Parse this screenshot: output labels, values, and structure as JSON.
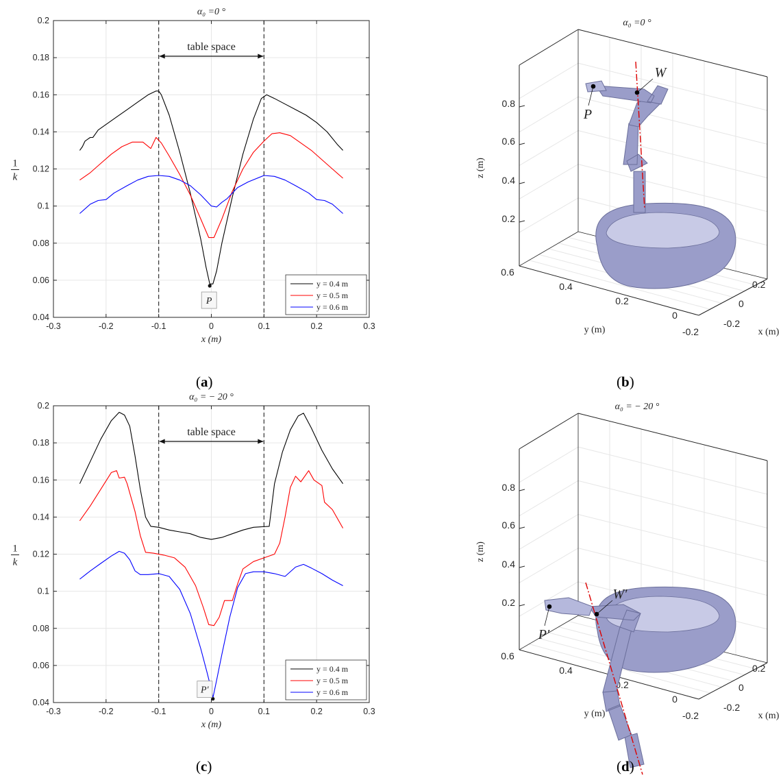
{
  "colors": {
    "black": "#000000",
    "red": "#ff0000",
    "blue": "#0000ff",
    "grid": "#e6e6e6",
    "robot": "#9a9dc9",
    "robot_dark": "#6a6e9a",
    "axis_line": "#dd0000"
  },
  "captions": {
    "a": "a",
    "b": "b",
    "c": "c",
    "d": "d"
  },
  "chart_data": [
    {
      "panel": "a",
      "type": "line",
      "title": "α₀ =0 °",
      "xlabel": "x (m)",
      "ylabel": "1/k",
      "ylabel_num": "1",
      "ylabel_den": "k",
      "xlim": [
        -0.3,
        0.3
      ],
      "ylim": [
        0.04,
        0.2
      ],
      "xticks": [
        "-0.3",
        "-0.2",
        "-0.1",
        "0",
        "0.1",
        "0.2",
        "0.3"
      ],
      "yticks": [
        "0.04",
        "0.06",
        "0.08",
        "0.1",
        "0.12",
        "0.14",
        "0.16",
        "0.18",
        "0.2"
      ],
      "grid": true,
      "legend": "bottom-right",
      "annotation": "table space",
      "dashed_x": [
        -0.1,
        0.1
      ],
      "point_label": "P",
      "point": [
        -0.003,
        0.057
      ],
      "series": [
        {
          "name": "y = 0.4 m",
          "color": "#000000",
          "points": [
            [
              -0.25,
              0.13
            ],
            [
              -0.245,
              0.132
            ],
            [
              -0.24,
              0.135
            ],
            [
              -0.235,
              0.136
            ],
            [
              -0.23,
              0.137
            ],
            [
              -0.225,
              0.137
            ],
            [
              -0.22,
              0.139
            ],
            [
              -0.215,
              0.141
            ],
            [
              -0.2,
              0.144
            ],
            [
              -0.18,
              0.148
            ],
            [
              -0.16,
              0.152
            ],
            [
              -0.14,
              0.156
            ],
            [
              -0.12,
              0.16
            ],
            [
              -0.105,
              0.162
            ],
            [
              -0.1,
              0.162
            ],
            [
              -0.095,
              0.16
            ],
            [
              -0.08,
              0.149
            ],
            [
              -0.06,
              0.129
            ],
            [
              -0.04,
              0.107
            ],
            [
              -0.02,
              0.082
            ],
            [
              -0.01,
              0.067
            ],
            [
              -0.003,
              0.058
            ],
            [
              0.003,
              0.058
            ],
            [
              0.01,
              0.065
            ],
            [
              0.02,
              0.08
            ],
            [
              0.04,
              0.105
            ],
            [
              0.06,
              0.128
            ],
            [
              0.08,
              0.147
            ],
            [
              0.095,
              0.158
            ],
            [
              0.105,
              0.16
            ],
            [
              0.12,
              0.158
            ],
            [
              0.14,
              0.155
            ],
            [
              0.16,
              0.152
            ],
            [
              0.18,
              0.149
            ],
            [
              0.2,
              0.145
            ],
            [
              0.22,
              0.14
            ],
            [
              0.24,
              0.133
            ],
            [
              0.25,
              0.13
            ]
          ]
        },
        {
          "name": "y = 0.5 m",
          "color": "#ff0000",
          "points": [
            [
              -0.25,
              0.114
            ],
            [
              -0.23,
              0.118
            ],
            [
              -0.21,
              0.123
            ],
            [
              -0.19,
              0.128
            ],
            [
              -0.17,
              0.132
            ],
            [
              -0.15,
              0.1345
            ],
            [
              -0.13,
              0.1345
            ],
            [
              -0.115,
              0.131
            ],
            [
              -0.105,
              0.137
            ],
            [
              -0.095,
              0.134
            ],
            [
              -0.08,
              0.127
            ],
            [
              -0.06,
              0.117
            ],
            [
              -0.04,
              0.106
            ],
            [
              -0.02,
              0.093
            ],
            [
              -0.005,
              0.083
            ],
            [
              0.005,
              0.083
            ],
            [
              0.02,
              0.093
            ],
            [
              0.04,
              0.108
            ],
            [
              0.06,
              0.12
            ],
            [
              0.08,
              0.129
            ],
            [
              0.1,
              0.135
            ],
            [
              0.115,
              0.139
            ],
            [
              0.13,
              0.1395
            ],
            [
              0.15,
              0.138
            ],
            [
              0.17,
              0.134
            ],
            [
              0.19,
              0.13
            ],
            [
              0.21,
              0.125
            ],
            [
              0.23,
              0.12
            ],
            [
              0.25,
              0.115
            ]
          ]
        },
        {
          "name": "y = 0.6 m",
          "color": "#0000ff",
          "points": [
            [
              -0.25,
              0.096
            ],
            [
              -0.23,
              0.101
            ],
            [
              -0.215,
              0.103
            ],
            [
              -0.2,
              0.1035
            ],
            [
              -0.185,
              0.107
            ],
            [
              -0.16,
              0.111
            ],
            [
              -0.14,
              0.114
            ],
            [
              -0.12,
              0.116
            ],
            [
              -0.1,
              0.1165
            ],
            [
              -0.08,
              0.116
            ],
            [
              -0.06,
              0.114
            ],
            [
              -0.04,
              0.111
            ],
            [
              -0.02,
              0.106
            ],
            [
              0.0,
              0.1
            ],
            [
              0.01,
              0.0995
            ],
            [
              0.02,
              0.102
            ],
            [
              0.03,
              0.104
            ],
            [
              0.05,
              0.11
            ],
            [
              0.07,
              0.113
            ],
            [
              0.1,
              0.1165
            ],
            [
              0.12,
              0.116
            ],
            [
              0.14,
              0.114
            ],
            [
              0.16,
              0.111
            ],
            [
              0.185,
              0.107
            ],
            [
              0.2,
              0.1035
            ],
            [
              0.215,
              0.103
            ],
            [
              0.23,
              0.101
            ],
            [
              0.25,
              0.096
            ]
          ]
        }
      ]
    },
    {
      "panel": "c",
      "type": "line",
      "title": "α₀ = − 20 °",
      "xlabel": "x (m)",
      "ylabel": "1/k",
      "ylabel_num": "1",
      "ylabel_den": "k",
      "xlim": [
        -0.3,
        0.3
      ],
      "ylim": [
        0.04,
        0.2
      ],
      "xticks": [
        "-0.3",
        "-0.2",
        "-0.1",
        "0",
        "0.1",
        "0.2",
        "0.3"
      ],
      "yticks": [
        "0.04",
        "0.06",
        "0.08",
        "0.1",
        "0.12",
        "0.14",
        "0.16",
        "0.18",
        "0.2"
      ],
      "grid": true,
      "legend": "bottom-right",
      "annotation": "table space",
      "dashed_x": [
        -0.1,
        0.1
      ],
      "point_label": "P′",
      "point": [
        0.003,
        0.042
      ],
      "series": [
        {
          "name": "y = 0.4 m",
          "color": "#000000",
          "points": [
            [
              -0.25,
              0.158
            ],
            [
              -0.23,
              0.17
            ],
            [
              -0.21,
              0.182
            ],
            [
              -0.19,
              0.192
            ],
            [
              -0.175,
              0.1965
            ],
            [
              -0.165,
              0.195
            ],
            [
              -0.155,
              0.189
            ],
            [
              -0.145,
              0.173
            ],
            [
              -0.135,
              0.155
            ],
            [
              -0.125,
              0.14
            ],
            [
              -0.115,
              0.135
            ],
            [
              -0.1,
              0.1345
            ],
            [
              -0.08,
              0.133
            ],
            [
              -0.06,
              0.132
            ],
            [
              -0.04,
              0.131
            ],
            [
              -0.02,
              0.129
            ],
            [
              0.0,
              0.128
            ],
            [
              0.02,
              0.129
            ],
            [
              0.04,
              0.131
            ],
            [
              0.06,
              0.133
            ],
            [
              0.08,
              0.1345
            ],
            [
              0.11,
              0.135
            ],
            [
              0.12,
              0.158
            ],
            [
              0.135,
              0.175
            ],
            [
              0.15,
              0.187
            ],
            [
              0.165,
              0.1945
            ],
            [
              0.175,
              0.196
            ],
            [
              0.19,
              0.188
            ],
            [
              0.21,
              0.176
            ],
            [
              0.23,
              0.166
            ],
            [
              0.25,
              0.158
            ]
          ]
        },
        {
          "name": "y = 0.5 m",
          "color": "#ff0000",
          "points": [
            [
              -0.25,
              0.138
            ],
            [
              -0.23,
              0.146
            ],
            [
              -0.21,
              0.155
            ],
            [
              -0.19,
              0.164
            ],
            [
              -0.18,
              0.165
            ],
            [
              -0.175,
              0.161
            ],
            [
              -0.165,
              0.1615
            ],
            [
              -0.16,
              0.158
            ],
            [
              -0.145,
              0.143
            ],
            [
              -0.135,
              0.13
            ],
            [
              -0.125,
              0.121
            ],
            [
              -0.11,
              0.1205
            ],
            [
              -0.09,
              0.1195
            ],
            [
              -0.07,
              0.118
            ],
            [
              -0.05,
              0.113
            ],
            [
              -0.03,
              0.103
            ],
            [
              -0.015,
              0.091
            ],
            [
              -0.005,
              0.082
            ],
            [
              0.005,
              0.0815
            ],
            [
              0.015,
              0.086
            ],
            [
              0.025,
              0.095
            ],
            [
              0.04,
              0.095
            ],
            [
              0.05,
              0.104
            ],
            [
              0.06,
              0.112
            ],
            [
              0.08,
              0.116
            ],
            [
              0.1,
              0.118
            ],
            [
              0.12,
              0.12
            ],
            [
              0.13,
              0.126
            ],
            [
              0.14,
              0.14
            ],
            [
              0.15,
              0.156
            ],
            [
              0.16,
              0.162
            ],
            [
              0.17,
              0.159
            ],
            [
              0.185,
              0.165
            ],
            [
              0.195,
              0.16
            ],
            [
              0.21,
              0.157
            ],
            [
              0.215,
              0.148
            ],
            [
              0.23,
              0.144
            ],
            [
              0.25,
              0.134
            ]
          ]
        },
        {
          "name": "y = 0.6 m",
          "color": "#0000ff",
          "points": [
            [
              -0.25,
              0.1065
            ],
            [
              -0.23,
              0.111
            ],
            [
              -0.21,
              0.115
            ],
            [
              -0.19,
              0.119
            ],
            [
              -0.175,
              0.1215
            ],
            [
              -0.165,
              0.1205
            ],
            [
              -0.155,
              0.117
            ],
            [
              -0.145,
              0.111
            ],
            [
              -0.135,
              0.109
            ],
            [
              -0.12,
              0.109
            ],
            [
              -0.1,
              0.1095
            ],
            [
              -0.08,
              0.108
            ],
            [
              -0.06,
              0.101
            ],
            [
              -0.04,
              0.088
            ],
            [
              -0.02,
              0.069
            ],
            [
              -0.008,
              0.056
            ],
            [
              0.0,
              0.047
            ],
            [
              0.003,
              0.0425
            ],
            [
              0.01,
              0.052
            ],
            [
              0.02,
              0.066
            ],
            [
              0.035,
              0.086
            ],
            [
              0.05,
              0.102
            ],
            [
              0.065,
              0.1095
            ],
            [
              0.08,
              0.1105
            ],
            [
              0.1,
              0.1105
            ],
            [
              0.12,
              0.1095
            ],
            [
              0.14,
              0.108
            ],
            [
              0.16,
              0.113
            ],
            [
              0.175,
              0.1145
            ],
            [
              0.19,
              0.1125
            ],
            [
              0.21,
              0.1095
            ],
            [
              0.23,
              0.106
            ],
            [
              0.25,
              0.103
            ]
          ]
        }
      ]
    },
    {
      "panel": "b",
      "type": "3d-render",
      "title": "α₀ =0 °",
      "zlabel": "z (m)",
      "ylabel": "y (m)",
      "xlabel": "x (m)",
      "zticks": [
        "0.2",
        "0.4",
        "0.6",
        "0.8"
      ],
      "yticks": [
        "0.6",
        "0.4",
        "0.2",
        "0",
        "-0.2"
      ],
      "xticks": [
        "0.2",
        "0",
        "-0.2"
      ],
      "labels": [
        "W",
        "P"
      ]
    },
    {
      "panel": "d",
      "type": "3d-render",
      "title": "α₀ = − 20 °",
      "zlabel": "z (m)",
      "ylabel": "y (m)",
      "xlabel": "x (m)",
      "zticks": [
        "0.2",
        "0.4",
        "0.6",
        "0.8"
      ],
      "yticks": [
        "0.6",
        "0.4",
        "0.2",
        "0",
        "-0.2"
      ],
      "xticks": [
        "0.2",
        "0",
        "-0.2"
      ],
      "labels": [
        "W′",
        "P′"
      ]
    }
  ]
}
